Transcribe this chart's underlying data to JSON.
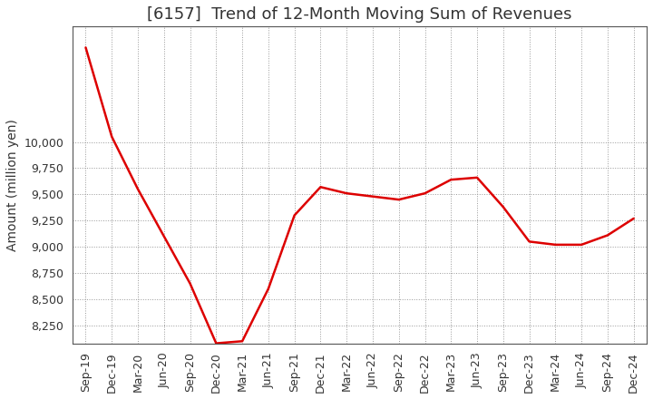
{
  "title": "[6157]  Trend of 12-Month Moving Sum of Revenues",
  "ylabel": "Amount (million yen)",
  "line_color": "#dd0000",
  "background_color": "#ffffff",
  "plot_bg_color": "#ffffff",
  "grid_color": "#999999",
  "x_labels": [
    "Sep-19",
    "Dec-19",
    "Mar-20",
    "Jun-20",
    "Sep-20",
    "Dec-20",
    "Mar-21",
    "Jun-21",
    "Sep-21",
    "Dec-21",
    "Mar-22",
    "Jun-22",
    "Sep-22",
    "Dec-22",
    "Mar-23",
    "Jun-23",
    "Sep-23",
    "Dec-23",
    "Mar-24",
    "Jun-24",
    "Sep-24",
    "Dec-24"
  ],
  "values": [
    10900,
    10050,
    9550,
    9100,
    8650,
    8080,
    8100,
    8600,
    9300,
    9570,
    9510,
    9480,
    9450,
    9510,
    9640,
    9660,
    9380,
    9050,
    9020,
    9020,
    9110,
    9270
  ],
  "ylim": [
    8080,
    11100
  ],
  "yticks": [
    8250,
    8500,
    8750,
    9000,
    9250,
    9500,
    9750,
    10000
  ],
  "linewidth": 1.8,
  "title_fontsize": 13,
  "title_color": "#333333",
  "axis_label_fontsize": 10,
  "tick_fontsize": 9
}
